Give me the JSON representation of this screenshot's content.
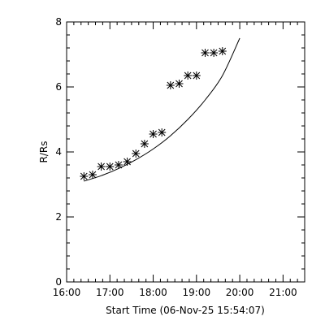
{
  "chart_data": {
    "type": "scatter",
    "xlabel": "Start Time (06-Nov-25 15:54:07)",
    "ylabel": "R/Rs",
    "x_tick_labels": [
      "16:00",
      "17:00",
      "18:00",
      "19:00",
      "20:00",
      "21:00"
    ],
    "y_tick_labels": [
      "0",
      "2",
      "4",
      "6",
      "8"
    ],
    "xlim": [
      "16:00",
      "21:30"
    ],
    "ylim": [
      0,
      8
    ],
    "grid": false,
    "marker": "asterisk",
    "points": [
      {
        "x": "16:24",
        "y": 3.25
      },
      {
        "x": "16:36",
        "y": 3.3
      },
      {
        "x": "16:48",
        "y": 3.55
      },
      {
        "x": "17:00",
        "y": 3.55
      },
      {
        "x": "17:12",
        "y": 3.6
      },
      {
        "x": "17:24",
        "y": 3.7
      },
      {
        "x": "17:36",
        "y": 3.95
      },
      {
        "x": "17:48",
        "y": 4.25
      },
      {
        "x": "18:00",
        "y": 4.55
      },
      {
        "x": "18:12",
        "y": 4.6
      },
      {
        "x": "18:24",
        "y": 6.05
      },
      {
        "x": "18:36",
        "y": 6.1
      },
      {
        "x": "18:48",
        "y": 6.35
      },
      {
        "x": "19:00",
        "y": 6.35
      },
      {
        "x": "19:12",
        "y": 7.05
      },
      {
        "x": "19:24",
        "y": 7.05
      },
      {
        "x": "19:36",
        "y": 7.1
      }
    ],
    "fit_curve": [
      {
        "x": "16:24",
        "y": 3.1
      },
      {
        "x": "16:48",
        "y": 3.27
      },
      {
        "x": "17:12",
        "y": 3.49
      },
      {
        "x": "17:36",
        "y": 3.76
      },
      {
        "x": "18:00",
        "y": 4.09
      },
      {
        "x": "18:24",
        "y": 4.5
      },
      {
        "x": "18:48",
        "y": 5.0
      },
      {
        "x": "19:12",
        "y": 5.6
      },
      {
        "x": "19:36",
        "y": 6.35
      },
      {
        "x": "20:00",
        "y": 7.5
      }
    ]
  }
}
